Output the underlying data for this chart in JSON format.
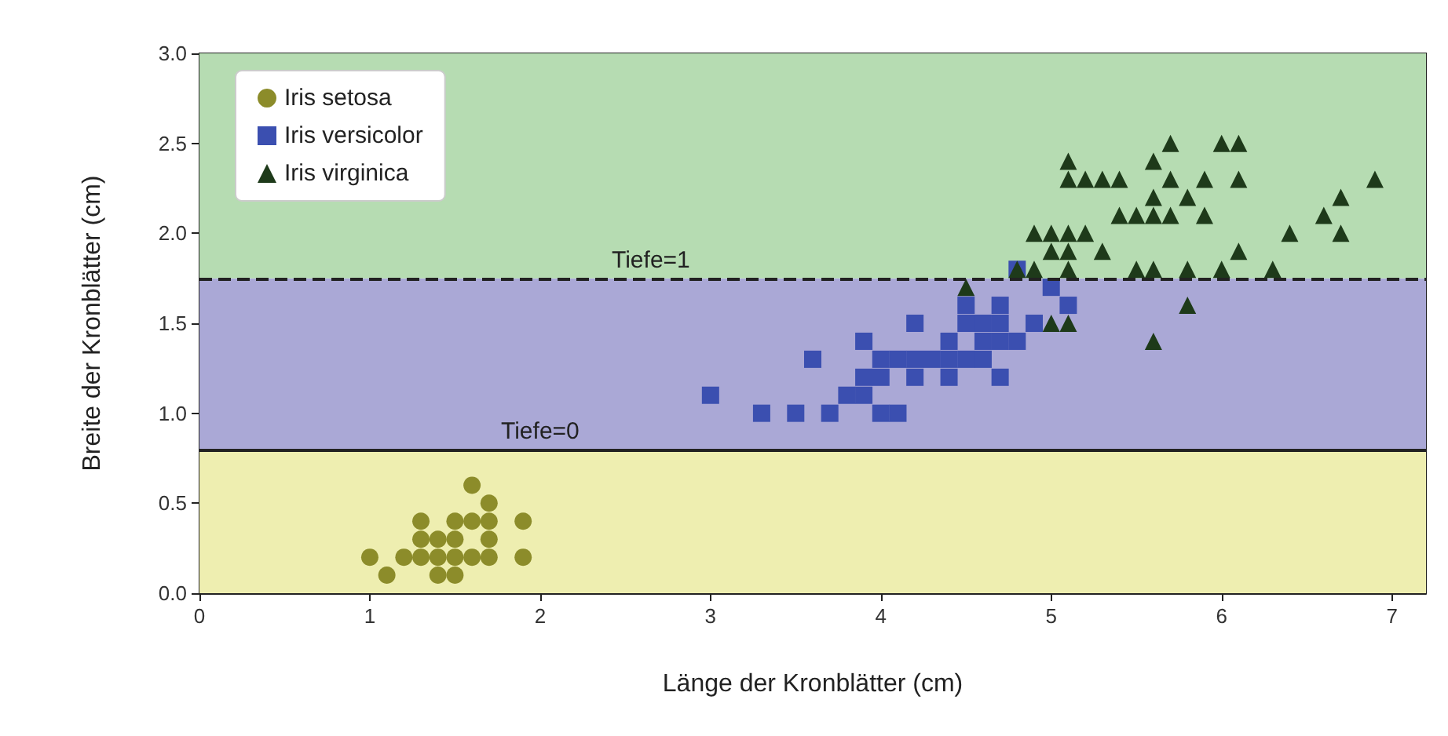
{
  "chart_data": {
    "type": "scatter",
    "xlabel": "Länge der Kronblätter (cm)",
    "ylabel": "Breite der Kronblätter (cm)",
    "xlim": [
      0,
      7.2
    ],
    "xticks": [
      0,
      1,
      2,
      3,
      4,
      5,
      6,
      7
    ],
    "ylim": [
      0,
      3
    ],
    "yticks": [
      {
        "value": 0,
        "label": "0.0"
      },
      {
        "value": 0.5,
        "label": "0.5"
      },
      {
        "value": 1,
        "label": "1.0"
      },
      {
        "value": 1.5,
        "label": "1.5"
      },
      {
        "value": 2,
        "label": "2.0"
      },
      {
        "value": 2.5,
        "label": "2.5"
      },
      {
        "value": 3,
        "label": "3.0"
      }
    ],
    "legend": "top left",
    "annotations": [
      {
        "text": "Tiefe=0",
        "x": 2.0,
        "y": 0.8
      },
      {
        "text": "Tiefe=1",
        "x": 2.65,
        "y": 1.75
      }
    ],
    "bands": [
      {
        "axis": "y",
        "from": 0,
        "to": 0.8,
        "color": "#eeeeb0"
      },
      {
        "axis": "y",
        "from": 0.8,
        "to": 1.75,
        "color": "#aaa8d6"
      },
      {
        "axis": "y",
        "from": 1.75,
        "to": 3,
        "color": "#b6dcb2"
      }
    ],
    "ref_lines": [
      {
        "axis": "y",
        "value": 0.8,
        "line_style": "solid",
        "color": "#222222"
      },
      {
        "axis": "y",
        "value": 1.75,
        "line_style": "dashed",
        "color": "#222222"
      }
    ],
    "series": [
      {
        "name": "Iris setosa",
        "color": "#8c8c2a",
        "marker": "circle",
        "x": [
          1.0,
          1.1,
          1.2,
          1.3,
          1.3,
          1.3,
          1.4,
          1.4,
          1.4,
          1.5,
          1.5,
          1.5,
          1.5,
          1.6,
          1.6,
          1.6,
          1.7,
          1.7,
          1.7,
          1.7,
          1.9,
          1.9
        ],
        "values": [
          0.2,
          0.1,
          0.2,
          0.2,
          0.3,
          0.4,
          0.1,
          0.2,
          0.3,
          0.1,
          0.2,
          0.3,
          0.4,
          0.2,
          0.4,
          0.6,
          0.2,
          0.3,
          0.4,
          0.5,
          0.2,
          0.4
        ]
      },
      {
        "name": "Iris versicolor",
        "color": "#3b4fb0",
        "marker": "square",
        "x": [
          3.0,
          3.3,
          3.5,
          3.6,
          3.7,
          3.8,
          3.9,
          3.9,
          3.9,
          4.0,
          4.0,
          4.0,
          4.1,
          4.1,
          4.2,
          4.2,
          4.2,
          4.3,
          4.4,
          4.4,
          4.4,
          4.5,
          4.5,
          4.5,
          4.6,
          4.6,
          4.6,
          4.7,
          4.7,
          4.7,
          4.7,
          4.8,
          4.8,
          4.9,
          5.0,
          5.1
        ],
        "values": [
          1.1,
          1.0,
          1.0,
          1.3,
          1.0,
          1.1,
          1.1,
          1.2,
          1.4,
          1.0,
          1.2,
          1.3,
          1.0,
          1.3,
          1.2,
          1.3,
          1.5,
          1.3,
          1.2,
          1.3,
          1.4,
          1.3,
          1.5,
          1.6,
          1.3,
          1.4,
          1.5,
          1.2,
          1.4,
          1.5,
          1.6,
          1.4,
          1.8,
          1.5,
          1.7,
          1.6
        ]
      },
      {
        "name": "Iris virginica",
        "color": "#1e3a1a",
        "marker": "triangle",
        "x": [
          4.5,
          4.8,
          4.9,
          4.9,
          5.0,
          5.0,
          5.0,
          5.1,
          5.1,
          5.1,
          5.1,
          5.1,
          5.1,
          5.2,
          5.2,
          5.3,
          5.3,
          5.4,
          5.4,
          5.5,
          5.5,
          5.6,
          5.6,
          5.6,
          5.6,
          5.6,
          5.7,
          5.7,
          5.7,
          5.8,
          5.8,
          5.8,
          5.9,
          5.9,
          6.0,
          6.0,
          6.1,
          6.1,
          6.1,
          6.3,
          6.4,
          6.6,
          6.7,
          6.7,
          6.9
        ],
        "values": [
          1.7,
          1.8,
          1.8,
          2.0,
          1.5,
          1.9,
          2.0,
          1.5,
          1.8,
          1.9,
          2.0,
          2.3,
          2.4,
          2.0,
          2.3,
          1.9,
          2.3,
          2.1,
          2.3,
          1.8,
          2.1,
          1.4,
          1.8,
          2.1,
          2.2,
          2.4,
          2.1,
          2.3,
          2.5,
          1.6,
          1.8,
          2.2,
          2.1,
          2.3,
          1.8,
          2.5,
          1.9,
          2.3,
          2.5,
          1.8,
          2.0,
          2.1,
          2.0,
          2.2,
          2.3
        ]
      }
    ]
  }
}
